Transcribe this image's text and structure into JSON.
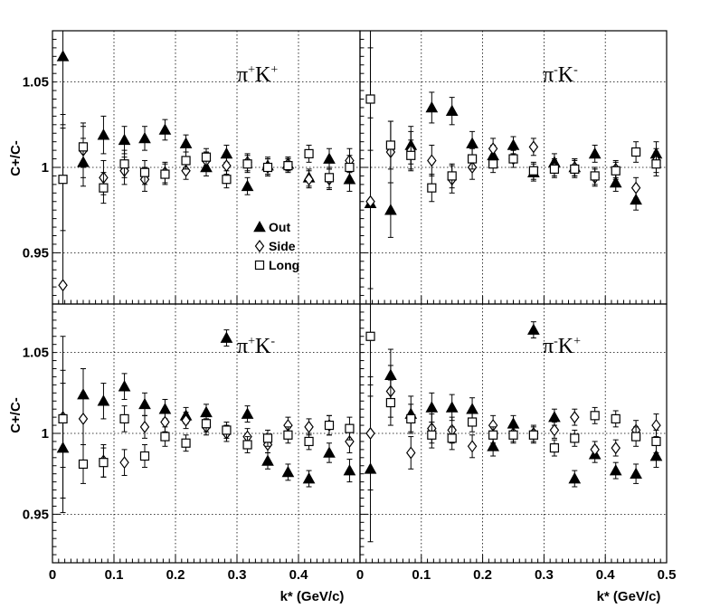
{
  "chart_data": {
    "type": "scatter",
    "layout": "2x2 panels",
    "ylabel": "C+/C-",
    "xlabel": "k* (GeV/c)",
    "xlim": [
      0,
      0.5
    ],
    "ylim": [
      0.92,
      1.08
    ],
    "xticks": [
      "0",
      "0.1",
      "0.2",
      "0.3",
      "0.4",
      "0.5"
    ],
    "xticks_left_panels": [
      "0",
      "0.1",
      "0.2",
      "0.3",
      "0.4",
      "0"
    ],
    "yticks": [
      "0.95",
      "1",
      "1.05"
    ],
    "grid": true,
    "legend": {
      "location": "top-left panel, center",
      "entries": [
        {
          "label": "Out",
          "marker": "filled-triangle"
        },
        {
          "label": "Side",
          "marker": "open-diamond"
        },
        {
          "label": "Long",
          "marker": "open-square"
        }
      ]
    },
    "x": [
      0.017,
      0.05,
      0.083,
      0.117,
      0.15,
      0.183,
      0.217,
      0.25,
      0.283,
      0.317,
      0.35,
      0.383,
      0.417,
      0.45,
      0.483
    ],
    "panels": [
      {
        "id": "top-left",
        "title_main1": "π",
        "title_sup1": "+",
        "title_main2": "K",
        "title_sup2": "+",
        "series": [
          {
            "name": "Out",
            "y": [
              1.065,
              1.003,
              1.019,
              1.016,
              1.017,
              1.022,
              1.014,
              1.0,
              1.008,
              0.989,
              1.001,
              1.002,
              0.994,
              1.005,
              0.993
            ],
            "err": [
              0.04,
              0.014,
              0.011,
              0.008,
              0.007,
              0.006,
              0.005,
              0.005,
              0.005,
              0.005,
              0.005,
              0.004,
              0.005,
              0.006,
              0.007
            ]
          },
          {
            "name": "Side",
            "y": [
              0.931,
              1.01,
              0.994,
              0.998,
              0.993,
              0.997,
              0.998,
              1.004,
              1.001,
              1.003,
              1.0,
              1.002,
              0.993,
              0.993,
              1.004
            ],
            "err": [
              0.1,
              0.016,
              0.01,
              0.008,
              0.007,
              0.006,
              0.005,
              0.005,
              0.005,
              0.005,
              0.005,
              0.004,
              0.005,
              0.006,
              0.007
            ]
          },
          {
            "name": "Long",
            "y": [
              0.993,
              1.012,
              0.988,
              1.002,
              0.997,
              0.996,
              1.004,
              1.006,
              0.993,
              1.002,
              1.0,
              1.001,
              1.008,
              0.994,
              1.0
            ],
            "err": [
              0.03,
              0.012,
              0.009,
              0.008,
              0.007,
              0.006,
              0.005,
              0.005,
              0.005,
              0.005,
              0.005,
              0.004,
              0.005,
              0.006,
              0.007
            ]
          }
        ]
      },
      {
        "id": "top-right",
        "title_main1": "π",
        "title_sup1": "-",
        "title_main2": "K",
        "title_sup2": "-",
        "series": [
          {
            "name": "Out",
            "y": [
              0.979,
              0.975,
              1.013,
              1.035,
              1.033,
              1.014,
              1.007,
              1.013,
              0.997,
              1.003,
              1.0,
              1.008,
              0.991,
              0.981,
              1.008
            ],
            "err": [
              0.05,
              0.016,
              0.011,
              0.009,
              0.008,
              0.007,
              0.006,
              0.005,
              0.005,
              0.005,
              0.005,
              0.005,
              0.005,
              0.006,
              0.007
            ]
          },
          {
            "name": "Side",
            "y": [
              0.98,
              1.009,
              1.01,
              1.004,
              0.993,
              1.0,
              1.011,
              1.005,
              1.012,
              1.0,
              1.0,
              0.994,
              0.999,
              0.988,
              1.004
            ],
            "err": [
              0.1,
              0.018,
              0.011,
              0.009,
              0.008,
              0.007,
              0.006,
              0.005,
              0.005,
              0.005,
              0.005,
              0.005,
              0.005,
              0.006,
              0.007
            ]
          },
          {
            "name": "Long",
            "y": [
              1.04,
              1.013,
              1.007,
              0.988,
              0.995,
              1.005,
              1.002,
              1.005,
              0.998,
              0.999,
              0.999,
              0.995,
              0.998,
              1.009,
              1.002
            ],
            "err": [
              0.03,
              0.014,
              0.009,
              0.008,
              0.007,
              0.006,
              0.005,
              0.005,
              0.005,
              0.005,
              0.005,
              0.005,
              0.005,
              0.006,
              0.007
            ]
          }
        ]
      },
      {
        "id": "bottom-left",
        "title_main1": "π",
        "title_sup1": "+",
        "title_main2": "K",
        "title_sup2": "-",
        "series": [
          {
            "name": "Out",
            "y": [
              0.991,
              1.024,
              1.02,
              1.029,
              1.018,
              1.015,
              1.011,
              1.013,
              1.059,
              1.012,
              0.983,
              0.976,
              0.972,
              0.988,
              0.977
            ],
            "err": [
              0.04,
              0.016,
              0.011,
              0.008,
              0.007,
              0.006,
              0.005,
              0.005,
              0.005,
              0.005,
              0.005,
              0.005,
              0.005,
              0.006,
              0.007
            ]
          },
          {
            "name": "Side",
            "y": [
              1.01,
              1.009,
              0.983,
              0.982,
              1.004,
              1.007,
              1.008,
              1.004,
              1.0,
              0.998,
              0.993,
              1.005,
              1.004,
              1.005,
              0.995
            ],
            "err": [
              0.05,
              0.016,
              0.01,
              0.008,
              0.007,
              0.006,
              0.005,
              0.005,
              0.005,
              0.005,
              0.005,
              0.005,
              0.005,
              0.006,
              0.007
            ]
          },
          {
            "name": "Long",
            "y": [
              1.009,
              0.981,
              0.982,
              1.009,
              0.986,
              0.998,
              0.994,
              1.006,
              1.002,
              0.993,
              0.997,
              0.999,
              0.995,
              1.005,
              1.003
            ],
            "err": [
              0.03,
              0.012,
              0.009,
              0.008,
              0.007,
              0.006,
              0.005,
              0.005,
              0.005,
              0.005,
              0.005,
              0.005,
              0.005,
              0.006,
              0.007
            ]
          }
        ]
      },
      {
        "id": "bottom-right",
        "title_main1": "π",
        "title_sup1": "-",
        "title_main2": "K",
        "title_sup2": "+",
        "series": [
          {
            "name": "Out",
            "y": [
              0.978,
              1.036,
              1.012,
              1.016,
              1.016,
              1.015,
              0.992,
              1.006,
              1.064,
              1.01,
              0.972,
              0.987,
              0.977,
              0.975,
              0.986
            ],
            "err": [
              0.045,
              0.016,
              0.011,
              0.009,
              0.008,
              0.007,
              0.006,
              0.005,
              0.005,
              0.005,
              0.005,
              0.005,
              0.005,
              0.006,
              0.007
            ]
          },
          {
            "name": "Side",
            "y": [
              1.0,
              1.026,
              0.988,
              1.003,
              1.002,
              0.992,
              1.005,
              1.0,
              1.0,
              1.002,
              1.01,
              0.99,
              0.991,
              1.002,
              1.005
            ],
            "err": [
              0.035,
              0.016,
              0.01,
              0.009,
              0.008,
              0.007,
              0.006,
              0.005,
              0.005,
              0.005,
              0.005,
              0.005,
              0.005,
              0.006,
              0.007
            ]
          },
          {
            "name": "Long",
            "y": [
              1.06,
              1.019,
              1.009,
              0.999,
              0.997,
              1.007,
              0.999,
              0.999,
              0.999,
              0.991,
              0.997,
              1.011,
              1.009,
              0.998,
              0.995
            ],
            "err": [
              0.03,
              0.014,
              0.009,
              0.008,
              0.007,
              0.006,
              0.005,
              0.005,
              0.005,
              0.005,
              0.005,
              0.005,
              0.005,
              0.006,
              0.007
            ]
          }
        ]
      }
    ]
  }
}
